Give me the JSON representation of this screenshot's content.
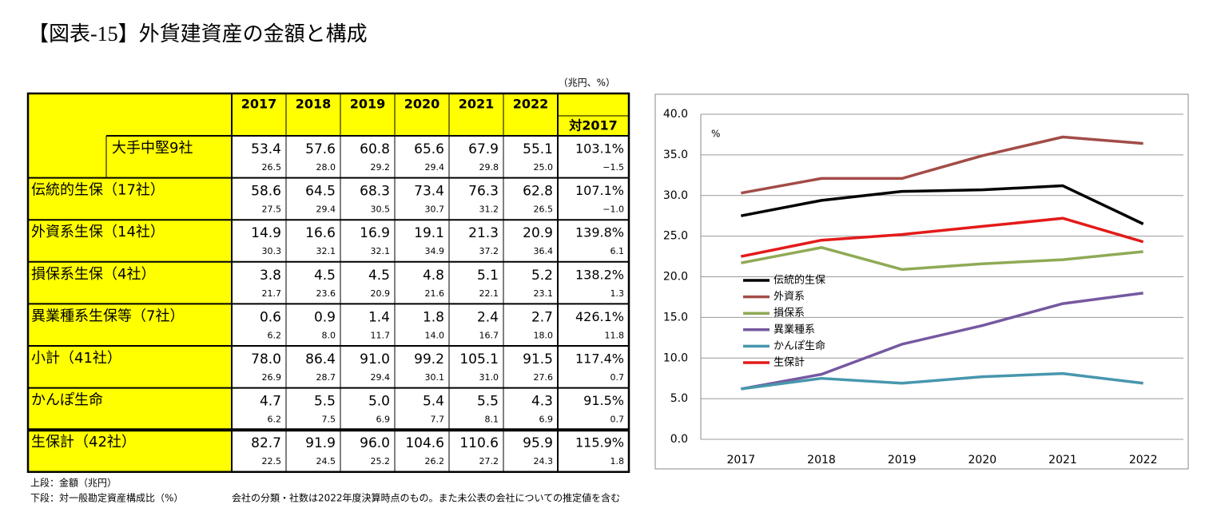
{
  "title": "【図表-15】外貨建資産の金額と構成",
  "table": {
    "unit": "（兆円、%）",
    "columns": [
      "2017",
      "2018",
      "2019",
      "2020",
      "2021",
      "2022"
    ],
    "change_header": "対2017",
    "rows": [
      {
        "label": "大手中堅9社",
        "amounts": [
          "53.4",
          "57.6",
          "60.8",
          "65.6",
          "67.9",
          "55.1"
        ],
        "amount_change": "103.1%",
        "shares": [
          "26.5",
          "28.0",
          "29.2",
          "29.4",
          "29.8",
          "25.0"
        ],
        "share_change": "−1.5"
      },
      {
        "label": "伝統的生保（17社）",
        "amounts": [
          "58.6",
          "64.5",
          "68.3",
          "73.4",
          "76.3",
          "62.8"
        ],
        "amount_change": "107.1%",
        "shares": [
          "27.5",
          "29.4",
          "30.5",
          "30.7",
          "31.2",
          "26.5"
        ],
        "share_change": "−1.0"
      },
      {
        "label": "外資系生保（14社）",
        "amounts": [
          "14.9",
          "16.6",
          "16.9",
          "19.1",
          "21.3",
          "20.9"
        ],
        "amount_change": "139.8%",
        "shares": [
          "30.3",
          "32.1",
          "32.1",
          "34.9",
          "37.2",
          "36.4"
        ],
        "share_change": "6.1"
      },
      {
        "label": "損保系生保（4社）",
        "amounts": [
          "3.8",
          "4.5",
          "4.5",
          "4.8",
          "5.1",
          "5.2"
        ],
        "amount_change": "138.2%",
        "shares": [
          "21.7",
          "23.6",
          "20.9",
          "21.6",
          "22.1",
          "23.1"
        ],
        "share_change": "1.3"
      },
      {
        "label": "異業種系生保等（7社）",
        "amounts": [
          "0.6",
          "0.9",
          "1.4",
          "1.8",
          "2.4",
          "2.7"
        ],
        "amount_change": "426.1%",
        "shares": [
          "6.2",
          "8.0",
          "11.7",
          "14.0",
          "16.7",
          "18.0"
        ],
        "share_change": "11.8"
      },
      {
        "label": "小計（41社）",
        "amounts": [
          "78.0",
          "86.4",
          "91.0",
          "99.2",
          "105.1",
          "91.5"
        ],
        "amount_change": "117.4%",
        "shares": [
          "26.9",
          "28.7",
          "29.4",
          "30.1",
          "31.0",
          "27.6"
        ],
        "share_change": "0.7"
      },
      {
        "label": "かんぽ生命",
        "amounts": [
          "4.7",
          "5.5",
          "5.0",
          "5.4",
          "5.5",
          "4.3"
        ],
        "amount_change": "91.5%",
        "shares": [
          "6.2",
          "7.5",
          "6.9",
          "7.7",
          "8.1",
          "6.9"
        ],
        "share_change": "0.7"
      },
      {
        "label": "生保計（42社）",
        "amounts": [
          "82.7",
          "91.9",
          "96.0",
          "104.6",
          "110.6",
          "95.9"
        ],
        "amount_change": "115.9%",
        "shares": [
          "22.5",
          "24.5",
          "25.2",
          "26.2",
          "27.2",
          "24.3"
        ],
        "share_change": "1.8"
      }
    ]
  },
  "notes": [
    "上段：金額（兆円）",
    "下段：対一般勘定資産構成比（%）",
    "会社の分類・社数は2022年度決算時点のもの。また未公表の会社についての推定値を含む"
  ],
  "chart_data": {
    "type": "line",
    "y_label": "%",
    "categories": [
      "2017",
      "2018",
      "2019",
      "2020",
      "2021",
      "2022"
    ],
    "ylim": [
      0,
      40
    ],
    "yticks": [
      {
        "value": 0,
        "label": "0.0"
      },
      {
        "value": 5,
        "label": "5.0"
      },
      {
        "value": 10,
        "label": "10.0"
      },
      {
        "value": 15,
        "label": "15.0"
      },
      {
        "value": 20,
        "label": "20.0"
      },
      {
        "value": 25,
        "label": "25.0"
      },
      {
        "value": 30,
        "label": "30.0"
      },
      {
        "value": 35,
        "label": "35.0"
      },
      {
        "value": 40,
        "label": "40.0"
      }
    ],
    "grid": true,
    "series": [
      {
        "name": "伝統的生保",
        "color": "#000000",
        "values": [
          27.5,
          29.4,
          30.5,
          30.7,
          31.2,
          26.5
        ]
      },
      {
        "name": "外資系",
        "color": "#a24c47",
        "values": [
          30.3,
          32.1,
          32.1,
          34.9,
          37.2,
          36.4
        ]
      },
      {
        "name": "損保系",
        "color": "#8faa55",
        "values": [
          21.7,
          23.6,
          20.9,
          21.6,
          22.1,
          23.1
        ]
      },
      {
        "name": "異業種系",
        "color": "#7559a0",
        "values": [
          6.2,
          8.0,
          11.7,
          14.0,
          16.7,
          18.0
        ]
      },
      {
        "name": "かんぽ生命",
        "color": "#4797ad",
        "values": [
          6.2,
          7.5,
          6.9,
          7.7,
          8.1,
          6.9
        ]
      },
      {
        "name": "生保計",
        "color": "#e41a1a",
        "values": [
          22.5,
          24.5,
          25.2,
          26.2,
          27.2,
          24.3
        ]
      }
    ]
  }
}
